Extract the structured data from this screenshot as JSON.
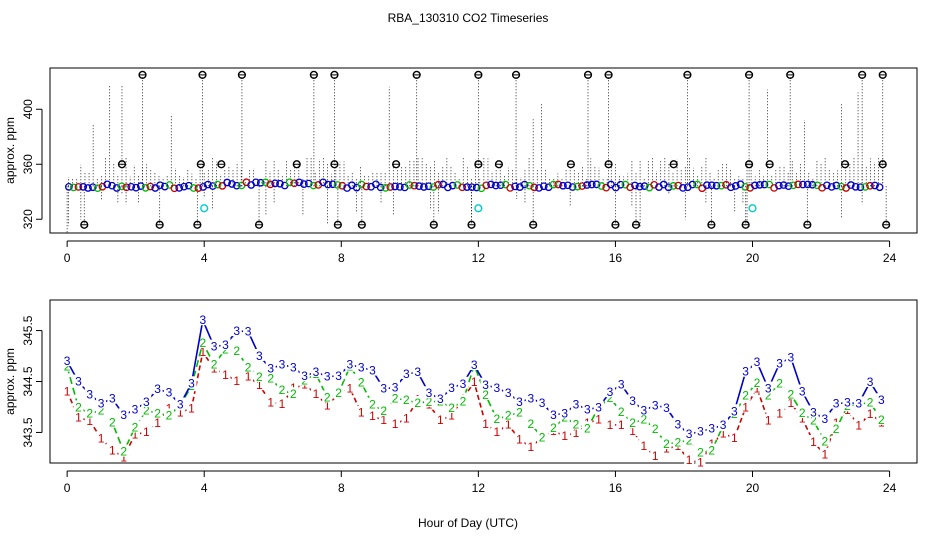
{
  "title": "RBA_130310  CO2 Timeseries",
  "xlabel": "Hour of Day (UTC)",
  "colors": {
    "black": "#000000",
    "blue": "#0000cc",
    "green": "#00bb00",
    "red": "#cc0000",
    "cyan": "#00cccc",
    "line1": "#0000cc",
    "line2": "#00bb00",
    "line3": "#cc0000"
  },
  "chart_data": [
    {
      "type": "scatter",
      "title": "RBA_130310  CO2 Timeseries",
      "xlabel": "",
      "ylabel": "approx. ppm",
      "xlim": [
        -0.5,
        24.8
      ],
      "ylim": [
        310,
        430
      ],
      "xticks": [
        0,
        4,
        8,
        12,
        16,
        20,
        24
      ],
      "yticks": [
        320,
        360,
        400
      ],
      "xtick_labels": [
        "0",
        "4",
        "8",
        "12",
        "16",
        "20",
        "24"
      ],
      "ytick_labels": [
        "320",
        "360",
        "400"
      ],
      "baseline": 344,
      "high_outliers_x": [
        2.2,
        3.95,
        5.1,
        7.2,
        7.8,
        10.2,
        12,
        13.1,
        15.2,
        15.8,
        18.1,
        19.9,
        21.1,
        23.2,
        23.8
      ],
      "high_outliers_y": 425,
      "mid_outliers_x": [
        1.6,
        3.9,
        4.5,
        6.7,
        7.8,
        9.6,
        12,
        12.6,
        14.7,
        15.8,
        17.7,
        19.9,
        20.5,
        22.7,
        23.8
      ],
      "mid_outliers_y": 360,
      "low_outliers_x": [
        0.5,
        2.7,
        3.8,
        5.6,
        7.9,
        8.6,
        10.7,
        11.8,
        13.6,
        16,
        16.6,
        18.8,
        19.8,
        21.6,
        23.9
      ],
      "low_outliers_y": 316,
      "cyan_points": [
        {
          "x": 4,
          "y": 328
        },
        {
          "x": 12,
          "y": 328
        },
        {
          "x": 20,
          "y": 328
        }
      ]
    },
    {
      "type": "line",
      "title": "",
      "xlabel": "Hour of Day (UTC)",
      "ylabel": "approx. ppm",
      "xlim": [
        -0.5,
        24.8
      ],
      "ylim": [
        342.9,
        346.1
      ],
      "xticks": [
        0,
        4,
        8,
        12,
        16,
        20,
        24
      ],
      "yticks": [
        343.5,
        344.5,
        345.5
      ],
      "xtick_labels": [
        "0",
        "4",
        "8",
        "12",
        "16",
        "20",
        "24"
      ],
      "ytick_labels": [
        "343.5",
        "344.5",
        "345.5"
      ],
      "series": [
        {
          "name": "3",
          "label": "3",
          "color": "#0000cc",
          "offset": 0
        },
        {
          "name": "2",
          "label": "2",
          "color": "#00bb00",
          "offset": -0.33
        },
        {
          "name": "1",
          "label": "1",
          "color": "#cc0000",
          "offset": -0.58
        }
      ],
      "anchors_x": [
        0,
        0.3,
        0.8,
        1.3,
        1.6,
        2.1,
        2.8,
        3.3,
        3.7,
        4.0,
        4.3,
        4.8,
        5.2,
        5.8,
        6.3,
        7.2,
        7.8,
        8.1,
        8.6,
        9.2,
        9.7,
        10.2,
        11.0,
        11.5,
        12.0,
        12.3,
        12.8,
        13.8,
        14.6,
        15.2,
        15.6,
        16.0,
        16.5,
        17.0,
        17.8,
        18.6,
        19.2,
        19.6,
        20.0,
        20.4,
        21.0,
        21.5,
        22.2,
        22.6,
        23.1,
        23.5,
        23.8
      ],
      "anchors_y": [
        344.9,
        344.3,
        344.1,
        344.0,
        343.6,
        344.2,
        344.4,
        344.3,
        344.6,
        345.7,
        345.1,
        345.3,
        345.3,
        344.9,
        344.8,
        344.9,
        344.3,
        345.0,
        344.6,
        344.3,
        344.5,
        344.7,
        344.3,
        344.4,
        345.1,
        344.0,
        344.2,
        344.0,
        344.1,
        344.0,
        344.2,
        344.3,
        344.0,
        343.9,
        343.8,
        343.5,
        343.9,
        344.0,
        345.0,
        344.3,
        344.9,
        344.3,
        343.7,
        344.4,
        344.2,
        344.4,
        344.0
      ]
    }
  ]
}
